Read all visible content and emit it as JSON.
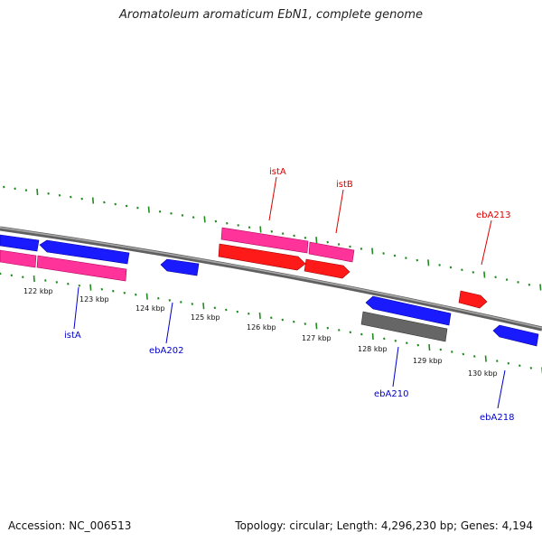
{
  "title": "Aromatoleum aromaticum EbN1, complete genome",
  "footer": {
    "accession": "Accession: NC_006513",
    "summary": "Topology: circular; Length: 4,296,230 bp; Genes: 4,194"
  },
  "colors": {
    "backbone": "#808080",
    "tick": "#228B22",
    "blue_gene": "#1a1aff",
    "red_gene": "#ff1a1a",
    "pink_gene": "#ff3399",
    "gray_gene": "#666666",
    "blue_label": "#0000cc",
    "red_label": "#dd0000"
  },
  "scale_labels": [
    "122 kbp",
    "123 kbp",
    "124 kbp",
    "125 kbp",
    "126 kbp",
    "127 kbp",
    "128 kbp",
    "129 kbp",
    "130 kbp"
  ],
  "gene_labels": {
    "istA_blue": "istA",
    "ebA202": "ebA202",
    "ebA210": "ebA210",
    "ebA218": "ebA218",
    "istA_red": "istA",
    "istB": "istB",
    "ebA213": "ebA213"
  }
}
